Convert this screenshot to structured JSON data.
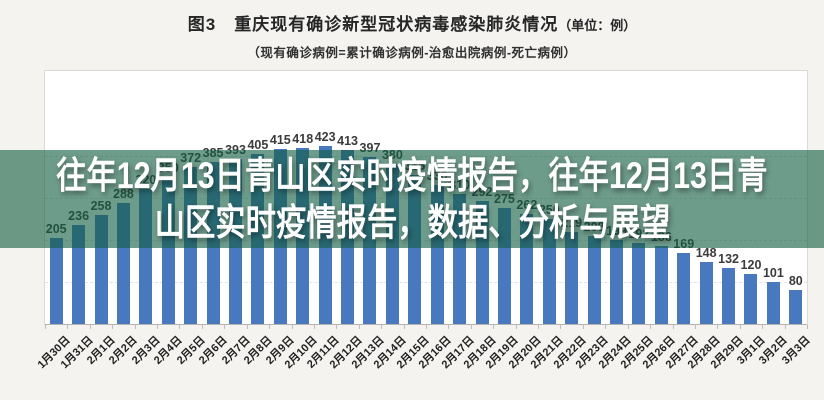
{
  "page": {
    "background": "#f4f3f0"
  },
  "chart_header": {
    "figure_label": "图3",
    "title": "重庆现有确诊新型冠状病毒感染肺炎情况",
    "unit_note": "（单位：例）",
    "subtitle": "（现有确诊病例=累计确诊病例-治愈出院病例-死亡病例）"
  },
  "overlay": {
    "line1": "往年12月13日青山区实时疫情报告，往年12月13日青",
    "line2": "山区实时疫情报告，数据、分析与展望",
    "band_color": "rgba(21,96,67,0.62)",
    "text_color": "#ffffff"
  },
  "chart_data": {
    "type": "bar",
    "title": "图3 重庆现有确诊新型冠状病毒感染肺炎情况（单位：例）",
    "subtitle": "（现有确诊病例=累计确诊病例-治愈出院病例-死亡病例）",
    "categories": [
      "1月30日",
      "1月31日",
      "2月1日",
      "2月2日",
      "2月3日",
      "2月4日",
      "2月5日",
      "2月6日",
      "2月7日",
      "2月8日",
      "2月9日",
      "2月10日",
      "2月11日",
      "2月12日",
      "2月13日",
      "2月14日",
      "2月15日",
      "2月16日",
      "2月17日",
      "2月18日",
      "2月19日",
      "2月20日",
      "2月21日",
      "2月22日",
      "2月23日",
      "2月24日",
      "2月25日",
      "2月26日",
      "2月27日",
      "2月28日",
      "2月29日",
      "3月1日",
      "3月2日",
      "3月3日"
    ],
    "values": [
      205,
      236,
      258,
      288,
      320,
      350,
      372,
      385,
      393,
      405,
      415,
      418,
      423,
      413,
      397,
      380,
      355,
      330,
      310,
      292,
      275,
      262,
      250,
      219,
      208,
      199,
      192,
      186,
      169,
      148,
      132,
      120,
      101,
      80
    ],
    "labels_hidden_by_overlay_indices": [
      3,
      4,
      18,
      19,
      20,
      24,
      25,
      26
    ],
    "bar_color": "#4878be",
    "value_label_color": "#3b3b3b",
    "ylim": [
      0,
      450
    ],
    "gridline_values": [
      100,
      200,
      300,
      400
    ],
    "grid_style": "dashed",
    "legend": "none",
    "x_label_rotation_deg": -45
  }
}
